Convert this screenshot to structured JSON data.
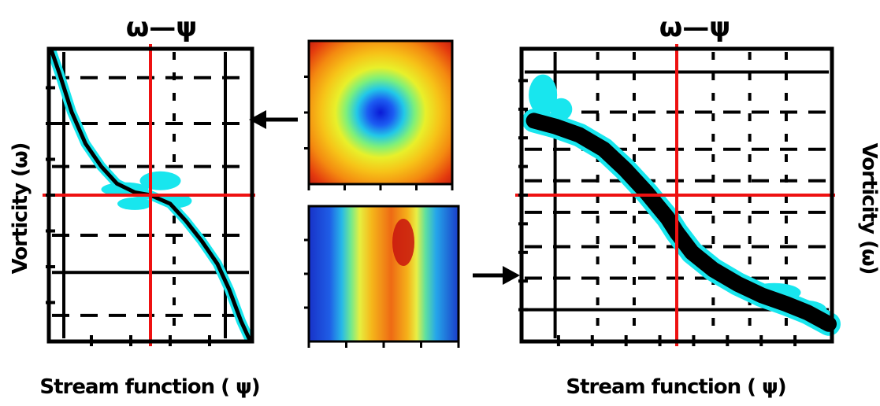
{
  "figure": {
    "left_title": "ω—ψ",
    "right_title": "ω—ψ",
    "left_xlabel": "Stream function ( ψ)",
    "left_ylabel": "Vorticity (ω)",
    "right_xlabel": "Stream function ( ψ)",
    "right_ylabel": "Vorticity (ω)"
  },
  "colors": {
    "scatter": "#18e6ee",
    "curve": "#000000",
    "crosshair": "#ee1111",
    "axes": "#000000"
  },
  "chart_data": [
    {
      "type": "scatter",
      "title": "ω—ψ",
      "xlabel": "Stream function ( ψ)",
      "ylabel": "Vorticity (ω)",
      "xlim": [
        0,
        1
      ],
      "ylim": [
        0,
        1
      ],
      "grid": true,
      "crosshair": {
        "x": 0.5,
        "y": 0.5
      },
      "series": [
        {
          "values": [
            [
              0.0,
              1.0
            ],
            [
              0.04,
              0.92
            ],
            [
              0.1,
              0.79
            ],
            [
              0.17,
              0.68
            ],
            [
              0.25,
              0.6
            ],
            [
              0.33,
              0.54
            ],
            [
              0.42,
              0.51
            ],
            [
              0.5,
              0.5
            ],
            [
              0.6,
              0.47
            ],
            [
              0.68,
              0.41
            ],
            [
              0.76,
              0.34
            ],
            [
              0.84,
              0.26
            ],
            [
              0.9,
              0.17
            ],
            [
              0.96,
              0.06
            ],
            [
              1.0,
              0.0
            ]
          ]
        }
      ]
    },
    {
      "type": "heatmap",
      "colormap": "jet",
      "pattern": "central minimum (blue) surrounded by yellow and red corners"
    },
    {
      "type": "heatmap",
      "colormap": "jet",
      "pattern": "vertical band: blue sides, orange-red center strip"
    },
    {
      "type": "scatter",
      "title": "ω—ψ",
      "xlabel": "Stream function ( ψ)",
      "ylabel": "Vorticity (ω)",
      "xlim": [
        0,
        1
      ],
      "ylim": [
        0,
        1
      ],
      "grid": true,
      "crosshair": {
        "x": 0.5,
        "y": 0.5
      },
      "series": [
        {
          "values": [
            [
              0.03,
              0.76
            ],
            [
              0.1,
              0.74
            ],
            [
              0.18,
              0.71
            ],
            [
              0.26,
              0.66
            ],
            [
              0.33,
              0.59
            ],
            [
              0.4,
              0.51
            ],
            [
              0.47,
              0.42
            ],
            [
              0.5,
              0.37
            ],
            [
              0.55,
              0.3
            ],
            [
              0.62,
              0.24
            ],
            [
              0.7,
              0.19
            ],
            [
              0.78,
              0.15
            ],
            [
              0.86,
              0.12
            ],
            [
              0.93,
              0.09
            ],
            [
              1.0,
              0.05
            ]
          ]
        }
      ]
    }
  ]
}
